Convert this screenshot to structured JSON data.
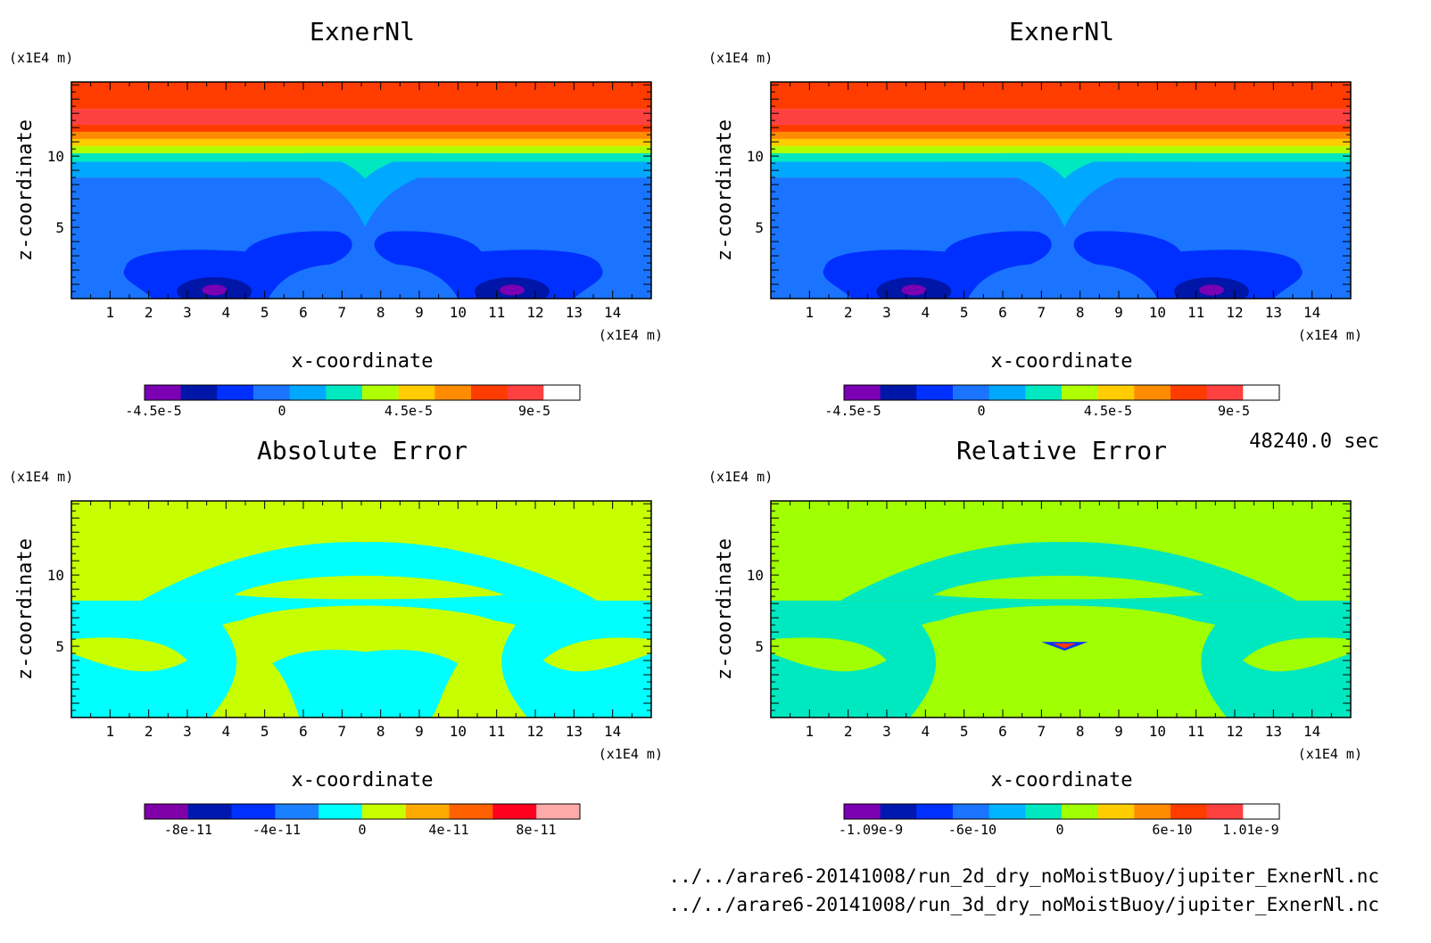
{
  "panels": [
    {
      "title": "ExnerNl",
      "x_unit": "(x1E4 m)",
      "y_unit": "(x1E4 m)",
      "xlabel": "x-coordinate",
      "ylabel": "z-coordinate",
      "x_ticks": [
        "1",
        "2",
        "3",
        "4",
        "5",
        "6",
        "7",
        "8",
        "9",
        "10",
        "11",
        "12",
        "13",
        "14"
      ],
      "y_ticks": [
        "5",
        "10"
      ],
      "colorbar": {
        "colors": [
          "#7b00b4",
          "#0016a8",
          "#0030ff",
          "#1a74ff",
          "#00a8ff",
          "#00e8c0",
          "#b0ff00",
          "#ffcc00",
          "#ff8c00",
          "#ff3c00",
          "#ff4040",
          "#ffffff"
        ],
        "labels": [
          "-4.5e-5",
          "0",
          "4.5e-5",
          "9e-5"
        ]
      },
      "field": "exner"
    },
    {
      "title": "ExnerNl",
      "x_unit": "(x1E4 m)",
      "y_unit": "(x1E4 m)",
      "xlabel": "x-coordinate",
      "ylabel": "z-coordinate",
      "x_ticks": [
        "1",
        "2",
        "3",
        "4",
        "5",
        "6",
        "7",
        "8",
        "9",
        "10",
        "11",
        "12",
        "13",
        "14"
      ],
      "y_ticks": [
        "5",
        "10"
      ],
      "colorbar": {
        "colors": [
          "#7b00b4",
          "#0016a8",
          "#0030ff",
          "#1a74ff",
          "#00a8ff",
          "#00e8c0",
          "#b0ff00",
          "#ffcc00",
          "#ff8c00",
          "#ff3c00",
          "#ff4040",
          "#ffffff"
        ],
        "labels": [
          "-4.5e-5",
          "0",
          "4.5e-5",
          "9e-5"
        ]
      },
      "field": "exner"
    },
    {
      "title": "Absolute Error",
      "x_unit": "(x1E4 m)",
      "y_unit": "(x1E4 m)",
      "xlabel": "x-coordinate",
      "ylabel": "z-coordinate",
      "x_ticks": [
        "1",
        "2",
        "3",
        "4",
        "5",
        "6",
        "7",
        "8",
        "9",
        "10",
        "11",
        "12",
        "13",
        "14"
      ],
      "y_ticks": [
        "5",
        "10"
      ],
      "colorbar": {
        "colors": [
          "#8000a8",
          "#0018b0",
          "#0030ff",
          "#1a80ff",
          "#00ffff",
          "#c8ff00",
          "#ffaa00",
          "#ff6000",
          "#ff0020",
          "#ffaaaa"
        ],
        "labels": [
          "-8e-11",
          "-4e-11",
          "0",
          "4e-11",
          "8e-11"
        ]
      },
      "field": "abs"
    },
    {
      "title": "Relative Error",
      "x_unit": "(x1E4 m)",
      "y_unit": "(x1E4 m)",
      "xlabel": "x-coordinate",
      "ylabel": "z-coordinate",
      "x_ticks": [
        "1",
        "2",
        "3",
        "4",
        "5",
        "6",
        "7",
        "8",
        "9",
        "10",
        "11",
        "12",
        "13",
        "14"
      ],
      "y_ticks": [
        "5",
        "10"
      ],
      "colorbar": {
        "colors": [
          "#7b00b4",
          "#0018b0",
          "#0030ff",
          "#1a74ff",
          "#00b4ff",
          "#00e8c0",
          "#a0ff00",
          "#ffcc00",
          "#ff8c00",
          "#ff3c00",
          "#ff4040",
          "#ffffff"
        ],
        "labels": [
          "-1.09e-9",
          "-6e-10",
          "0",
          "6e-10",
          "1.01e-9"
        ]
      },
      "field": "rel"
    }
  ],
  "time_label": "48240.0 sec",
  "file_paths": [
    "../../arare6-20141008/run_2d_dry_noMoistBuoy/jupiter_ExnerNl.nc",
    "../../arare6-20141008/run_3d_dry_noMoistBuoy/jupiter_ExnerNl.nc"
  ],
  "chart_data": [
    {
      "type": "heatmap",
      "title": "ExnerNl",
      "xlabel": "x-coordinate",
      "ylabel": "z-coordinate",
      "x_unit": "(x1E4 m)",
      "y_unit": "(x1E4 m)",
      "xlim": [
        0,
        15
      ],
      "ylim": [
        0,
        15
      ],
      "colorbar_ticks": [
        -4.5e-05,
        0,
        4.5e-05,
        9e-05
      ]
    },
    {
      "type": "heatmap",
      "title": "ExnerNl",
      "xlabel": "x-coordinate",
      "ylabel": "z-coordinate",
      "x_unit": "(x1E4 m)",
      "y_unit": "(x1E4 m)",
      "xlim": [
        0,
        15
      ],
      "ylim": [
        0,
        15
      ],
      "colorbar_ticks": [
        -4.5e-05,
        0,
        4.5e-05,
        9e-05
      ]
    },
    {
      "type": "heatmap",
      "title": "Absolute Error",
      "xlabel": "x-coordinate",
      "ylabel": "z-coordinate",
      "x_unit": "(x1E4 m)",
      "y_unit": "(x1E4 m)",
      "xlim": [
        0,
        15
      ],
      "ylim": [
        0,
        15
      ],
      "colorbar_ticks": [
        -8e-11,
        -4e-11,
        0,
        4e-11,
        8e-11
      ]
    },
    {
      "type": "heatmap",
      "title": "Relative Error",
      "xlabel": "x-coordinate",
      "ylabel": "z-coordinate",
      "x_unit": "(x1E4 m)",
      "y_unit": "(x1E4 m)",
      "xlim": [
        0,
        15
      ],
      "ylim": [
        0,
        15
      ],
      "colorbar_ticks": [
        -1.09e-09,
        -6e-10,
        0,
        6e-10,
        1.01e-09
      ]
    }
  ]
}
